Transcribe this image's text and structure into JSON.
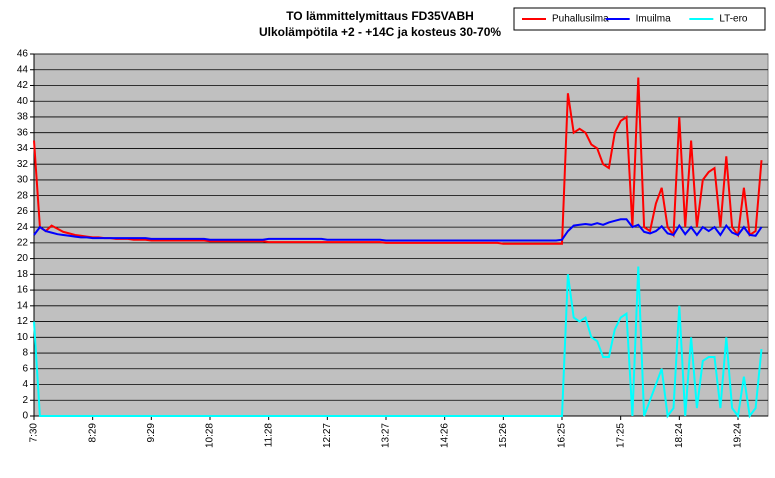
{
  "chart_data": {
    "type": "line",
    "title": "TO lämmittelymittaus  FD35VABH",
    "subtitle": "Ulkolämpötila +2 - +14C ja kosteus 30-70%",
    "categories": [
      "7:30",
      null,
      null,
      null,
      null,
      null,
      null,
      null,
      null,
      null,
      "8:29",
      null,
      null,
      null,
      null,
      null,
      null,
      null,
      null,
      null,
      "9:29",
      null,
      null,
      null,
      null,
      null,
      null,
      null,
      null,
      null,
      "10:28",
      null,
      null,
      null,
      null,
      null,
      null,
      null,
      null,
      null,
      "11:28",
      null,
      null,
      null,
      null,
      null,
      null,
      null,
      null,
      null,
      "12:27",
      null,
      null,
      null,
      null,
      null,
      null,
      null,
      null,
      null,
      "13:27",
      null,
      null,
      null,
      null,
      null,
      null,
      null,
      null,
      null,
      "14:26",
      null,
      null,
      null,
      null,
      null,
      null,
      null,
      null,
      null,
      "15:26",
      null,
      null,
      null,
      null,
      null,
      null,
      null,
      null,
      null,
      "16:25",
      null,
      null,
      null,
      null,
      null,
      null,
      null,
      null,
      null,
      "17:25",
      null,
      null,
      null,
      null,
      null,
      null,
      null,
      null,
      null,
      "18:24",
      null,
      null,
      null,
      null,
      null,
      null,
      null,
      null,
      null,
      "19:24",
      null,
      null,
      null,
      null
    ],
    "series": [
      {
        "name": "Puhallusilma",
        "color": "#ff0000",
        "values": [
          35,
          24,
          23.5,
          24.2,
          23.8,
          23.4,
          23.2,
          23,
          22.9,
          22.8,
          22.7,
          22.7,
          22.6,
          22.6,
          22.5,
          22.5,
          22.5,
          22.4,
          22.4,
          22.4,
          22.3,
          22.3,
          22.3,
          22.3,
          22.3,
          22.3,
          22.3,
          22.3,
          22.3,
          22.3,
          22.2,
          22.2,
          22.2,
          22.2,
          22.2,
          22.2,
          22.2,
          22.2,
          22.2,
          22.2,
          22.1,
          22.1,
          22.1,
          22.1,
          22.1,
          22.1,
          22.1,
          22.1,
          22.1,
          22.1,
          22.1,
          22.1,
          22.1,
          22.1,
          22.1,
          22.1,
          22.1,
          22.1,
          22.1,
          22.1,
          22,
          22,
          22,
          22,
          22,
          22,
          22,
          22,
          22,
          22,
          22,
          22,
          22,
          22,
          22,
          22,
          22,
          22,
          22,
          22,
          21.9,
          21.9,
          21.9,
          21.9,
          21.9,
          21.9,
          21.9,
          21.9,
          21.9,
          21.9,
          21.9,
          41,
          36,
          36.5,
          36,
          34.5,
          34,
          32,
          31.5,
          36,
          37.5,
          38,
          24,
          43,
          24,
          23.5,
          27,
          29,
          24,
          23,
          38,
          24,
          35,
          24,
          30,
          31,
          31.5,
          24,
          33,
          24,
          23,
          29,
          23,
          23.5,
          32.5
        ]
      },
      {
        "name": "Imuilma",
        "color": "#0000ff",
        "values": [
          23,
          24,
          23.5,
          23.3,
          23.1,
          23,
          22.9,
          22.8,
          22.7,
          22.7,
          22.6,
          22.6,
          22.6,
          22.6,
          22.6,
          22.6,
          22.6,
          22.6,
          22.6,
          22.6,
          22.5,
          22.5,
          22.5,
          22.5,
          22.5,
          22.5,
          22.5,
          22.5,
          22.5,
          22.5,
          22.4,
          22.4,
          22.4,
          22.4,
          22.4,
          22.4,
          22.4,
          22.4,
          22.4,
          22.4,
          22.5,
          22.5,
          22.5,
          22.5,
          22.5,
          22.5,
          22.5,
          22.5,
          22.5,
          22.5,
          22.4,
          22.4,
          22.4,
          22.4,
          22.4,
          22.4,
          22.4,
          22.4,
          22.4,
          22.4,
          22.3,
          22.3,
          22.3,
          22.3,
          22.3,
          22.3,
          22.3,
          22.3,
          22.3,
          22.3,
          22.3,
          22.3,
          22.3,
          22.3,
          22.3,
          22.3,
          22.3,
          22.3,
          22.3,
          22.3,
          22.3,
          22.3,
          22.3,
          22.3,
          22.3,
          22.3,
          22.3,
          22.3,
          22.3,
          22.3,
          22.4,
          23.5,
          24.2,
          24.3,
          24.4,
          24.3,
          24.5,
          24.3,
          24.6,
          24.8,
          25,
          25,
          24,
          24.3,
          23.4,
          23.2,
          23.5,
          24.1,
          23.2,
          23,
          24.2,
          23.1,
          24,
          23,
          24,
          23.5,
          24,
          23,
          24.2,
          23.3,
          23,
          24,
          23,
          22.9,
          24
        ]
      },
      {
        "name": "LT-ero",
        "color": "#00ffff",
        "values": [
          12,
          0,
          0,
          0,
          0,
          0,
          0,
          0,
          0,
          0,
          0,
          0,
          0,
          0,
          0,
          0,
          0,
          0,
          0,
          0,
          0,
          0,
          0,
          0,
          0,
          0,
          0,
          0,
          0,
          0,
          0,
          0,
          0,
          0,
          0,
          0,
          0,
          0,
          0,
          0,
          0,
          0,
          0,
          0,
          0,
          0,
          0,
          0,
          0,
          0,
          0,
          0,
          0,
          0,
          0,
          0,
          0,
          0,
          0,
          0,
          0,
          0,
          0,
          0,
          0,
          0,
          0,
          0,
          0,
          0,
          0,
          0,
          0,
          0,
          0,
          0,
          0,
          0,
          0,
          0,
          0,
          0,
          0,
          0,
          0,
          0,
          0,
          0,
          0,
          0,
          0,
          18,
          12.5,
          12,
          12.5,
          10,
          9.5,
          7.5,
          7.5,
          11,
          12.5,
          13,
          0,
          19,
          0,
          2,
          4,
          6,
          0,
          1,
          14,
          0,
          10,
          1,
          7,
          7.5,
          7.5,
          1,
          10,
          1,
          0,
          5,
          0,
          1,
          8.5
        ]
      }
    ],
    "ylim": [
      0,
      46
    ],
    "yticks": [
      0,
      2,
      4,
      6,
      8,
      10,
      12,
      14,
      16,
      18,
      20,
      22,
      24,
      26,
      28,
      30,
      32,
      34,
      36,
      38,
      40,
      42,
      44,
      46
    ],
    "grid": true,
    "plot_background": "#c0c0c0",
    "legend_position": "top-right"
  }
}
